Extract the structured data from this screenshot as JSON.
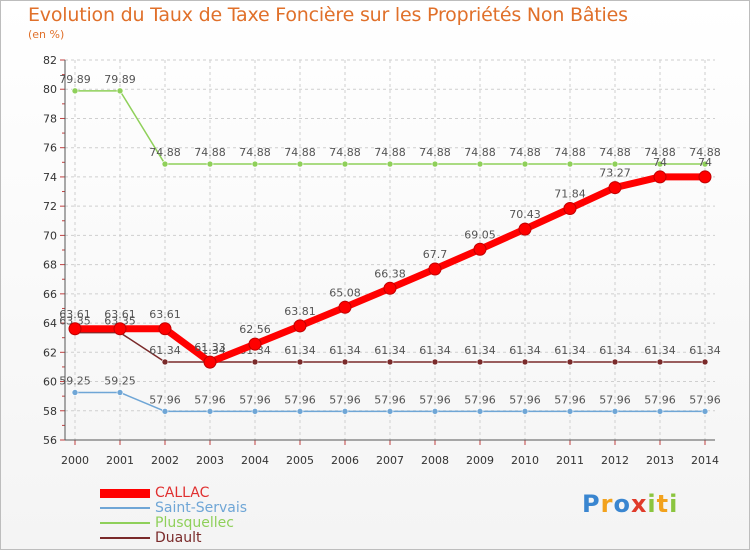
{
  "chart_data": {
    "type": "line",
    "title": "Evolution du Taux de Taxe Foncière sur les Propriétés Non Bâties",
    "ylabel": "(en %)",
    "xlabel": "",
    "ylim": [
      56,
      82
    ],
    "yticks": [
      "56",
      "58",
      "60",
      "62",
      "64",
      "66",
      "68",
      "70",
      "72",
      "74",
      "76",
      "78",
      "80",
      "82"
    ],
    "categories": [
      "2000",
      "2001",
      "2002",
      "2003",
      "2004",
      "2005",
      "2006",
      "2007",
      "2008",
      "2009",
      "2010",
      "2011",
      "2012",
      "2013",
      "2014"
    ],
    "grid": true,
    "legend_position": "bottom-left",
    "series": [
      {
        "name": "CALLAC",
        "color": "#ff0000",
        "values": [
          63.61,
          63.61,
          63.61,
          61.33,
          62.56,
          63.81,
          65.08,
          66.38,
          67.7,
          69.05,
          70.43,
          71.84,
          73.27,
          74.0,
          74.0
        ],
        "labels": [
          "63.61",
          "63.61",
          "63.61",
          "61.33",
          "62.56",
          "63.81",
          "65.08",
          "66.38",
          "67.7",
          "69.05",
          "70.43",
          "71.84",
          "73.27",
          "74",
          "74"
        ]
      },
      {
        "name": "Saint-Servais",
        "color": "#6fa6d6",
        "values": [
          59.25,
          59.25,
          57.96,
          57.96,
          57.96,
          57.96,
          57.96,
          57.96,
          57.96,
          57.96,
          57.96,
          57.96,
          57.96,
          57.96,
          57.96
        ],
        "labels": [
          "59.25",
          "59.25",
          "57.96",
          "57.96",
          "57.96",
          "57.96",
          "57.96",
          "57.96",
          "57.96",
          "57.96",
          "57.96",
          "57.96",
          "57.96",
          "57.96",
          "57.96"
        ]
      },
      {
        "name": "Plusquellec",
        "color": "#8fd05a",
        "values": [
          79.89,
          79.89,
          74.88,
          74.88,
          74.88,
          74.88,
          74.88,
          74.88,
          74.88,
          74.88,
          74.88,
          74.88,
          74.88,
          74.88,
          74.88
        ],
        "labels": [
          "79.89",
          "79.89",
          "74.88",
          "74.88",
          "74.88",
          "74.88",
          "74.88",
          "74.88",
          "74.88",
          "74.88",
          "74.88",
          "74.88",
          "74.88",
          "74.88",
          "74.88"
        ]
      },
      {
        "name": "Duault",
        "color": "#7a2a2a",
        "values": [
          63.35,
          63.35,
          61.34,
          61.34,
          61.34,
          61.34,
          61.34,
          61.34,
          61.34,
          61.34,
          61.34,
          61.34,
          61.34,
          61.34,
          61.34
        ],
        "labels": [
          "63.35",
          "63.35",
          "61.34",
          "61.34",
          "61.34",
          "61.34",
          "61.34",
          "61.34",
          "61.34",
          "61.34",
          "61.34",
          "61.34",
          "61.34",
          "61.34",
          "61.34"
        ]
      }
    ]
  },
  "logo": {
    "text": "Proxiti",
    "letters": [
      "P",
      "r",
      "o",
      "x",
      "i",
      "t",
      "i"
    ],
    "colors": [
      "#3a86d0",
      "#f2a21d",
      "#3a86d0",
      "#e03b2a",
      "#8bc53f",
      "#f2a21d",
      "#8bc53f"
    ]
  }
}
